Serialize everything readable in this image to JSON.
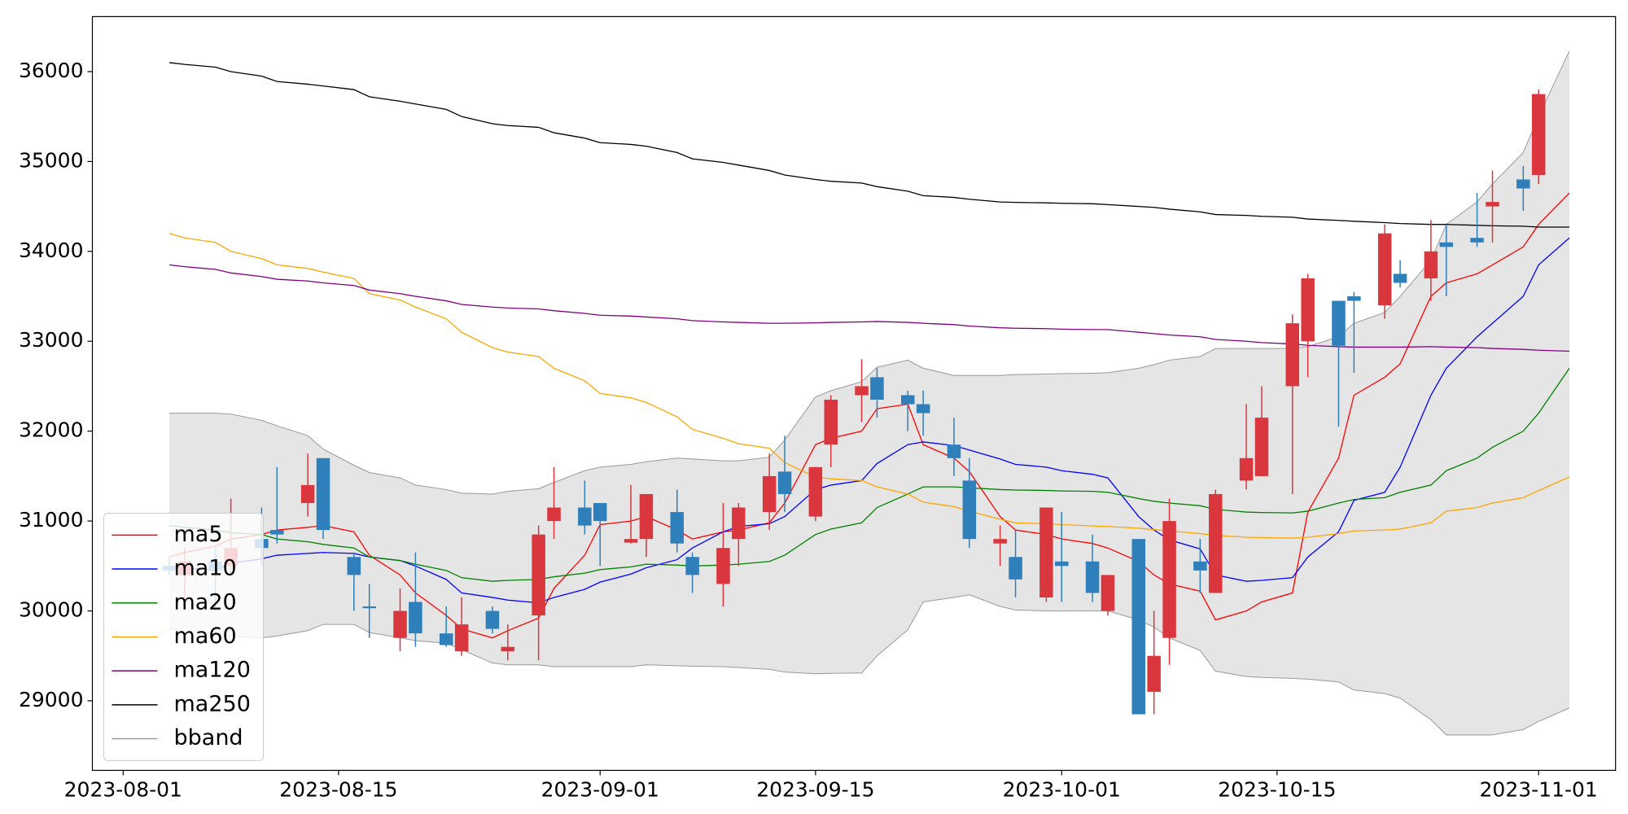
{
  "chart_data": {
    "type": "candlestick",
    "x": [
      "2023-08-04",
      "2023-08-05",
      "2023-08-07",
      "2023-08-08",
      "2023-08-10",
      "2023-08-11",
      "2023-08-13",
      "2023-08-14",
      "2023-08-16",
      "2023-08-17",
      "2023-08-19",
      "2023-08-20",
      "2023-08-22",
      "2023-08-23",
      "2023-08-25",
      "2023-08-26",
      "2023-08-28",
      "2023-08-29",
      "2023-08-31",
      "2023-09-01",
      "2023-09-03",
      "2023-09-04",
      "2023-09-06",
      "2023-09-07",
      "2023-09-09",
      "2023-09-10",
      "2023-09-12",
      "2023-09-13",
      "2023-09-15",
      "2023-09-16",
      "2023-09-18",
      "2023-09-19",
      "2023-09-21",
      "2023-09-22",
      "2023-09-24",
      "2023-09-25",
      "2023-09-27",
      "2023-09-28",
      "2023-09-30",
      "2023-10-01",
      "2023-10-03",
      "2023-10-04",
      "2023-10-06",
      "2023-10-07",
      "2023-10-08",
      "2023-10-10",
      "2023-10-11",
      "2023-10-13",
      "2023-10-14",
      "2023-10-16",
      "2023-10-17",
      "2023-10-19",
      "2023-10-20",
      "2023-10-22",
      "2023-10-23",
      "2023-10-25",
      "2023-10-26",
      "2023-10-28",
      "2023-10-29",
      "2023-10-31",
      "2023-11-01",
      "2023-11-03"
    ],
    "open": [
      30500,
      30400,
      30550,
      30500,
      30800,
      30900,
      31200,
      31700,
      30600,
      30050,
      29700,
      30100,
      29750,
      29550,
      30000,
      29550,
      29950,
      31000,
      31150,
      31200,
      30760,
      30800,
      31100,
      30600,
      30300,
      30800,
      31100,
      31550,
      31050,
      31850,
      32400,
      32600,
      32400,
      32300,
      31850,
      31450,
      30750,
      30600,
      30150,
      30550,
      30550,
      30000,
      30800,
      29100,
      29700,
      30550,
      30200,
      31450,
      31500,
      32500,
      33000,
      33450,
      33500,
      33400,
      33750,
      33700,
      34100,
      34150,
      34500,
      34800,
      34850,
      null
    ],
    "high": [
      30600,
      30700,
      30700,
      31250,
      31150,
      31600,
      31750,
      31700,
      30650,
      30300,
      30250,
      30650,
      30050,
      30150,
      30050,
      29850,
      30950,
      31600,
      31450,
      31200,
      31400,
      31300,
      31350,
      30650,
      31200,
      31200,
      31750,
      31950,
      31600,
      32400,
      32800,
      32700,
      32450,
      32450,
      32150,
      31700,
      30950,
      30900,
      31150,
      31100,
      30850,
      30400,
      30800,
      30000,
      31250,
      30800,
      31350,
      32300,
      32500,
      33300,
      33750,
      33450,
      33550,
      34300,
      33900,
      34350,
      34300,
      34650,
      34900,
      34950,
      35800,
      null
    ],
    "low": [
      30400,
      30150,
      30000,
      30400,
      30500,
      30750,
      31050,
      30800,
      30000,
      29700,
      29550,
      29600,
      29600,
      29500,
      29750,
      29450,
      29450,
      30800,
      30850,
      30500,
      30750,
      30600,
      30650,
      30200,
      30050,
      30500,
      30900,
      31100,
      31000,
      31600,
      32100,
      32150,
      32000,
      31950,
      31500,
      30700,
      30500,
      30150,
      30100,
      30100,
      30100,
      29950,
      28850,
      28850,
      29400,
      30200,
      30200,
      31350,
      31500,
      31300,
      32600,
      32050,
      32650,
      33250,
      33600,
      33450,
      33500,
      34050,
      34100,
      34450,
      34750,
      null
    ],
    "close": [
      30450,
      30550,
      30450,
      30700,
      30700,
      30850,
      31400,
      30900,
      30400,
      30030,
      30000,
      29750,
      29620,
      29850,
      29800,
      29600,
      30850,
      31150,
      30950,
      31000,
      30800,
      31300,
      30750,
      30400,
      30700,
      31150,
      31500,
      31300,
      31600,
      32350,
      32500,
      32350,
      32300,
      32200,
      31700,
      30800,
      30800,
      30350,
      31150,
      30500,
      30200,
      30400,
      28850,
      29500,
      31000,
      30450,
      31300,
      31700,
      32150,
      33200,
      33700,
      32950,
      33450,
      34200,
      33650,
      34000,
      34050,
      34100,
      34550,
      34700,
      35750,
      null
    ],
    "up_color": "#d9363e",
    "down_color": "#2f7fbb",
    "series": [
      {
        "name": "ma5",
        "color": "#ff0000",
        "values": [
          30600,
          30650,
          30720,
          30800,
          30850,
          30900,
          30930,
          30950,
          30880,
          30620,
          30400,
          30200,
          29950,
          29800,
          29700,
          29780,
          29920,
          30250,
          30620,
          30960,
          31000,
          31050,
          30900,
          30800,
          30880,
          30900,
          30980,
          31200,
          31850,
          31920,
          32000,
          32250,
          32300,
          31850,
          31700,
          31550,
          31050,
          30900,
          30850,
          30800,
          30750,
          30700,
          30550,
          30400,
          30300,
          30220,
          29900,
          30000,
          30100,
          30200,
          31100,
          31700,
          32400,
          32600,
          32750,
          33500,
          33650,
          33750,
          33850,
          34050,
          34300,
          34650
        ]
      },
      {
        "name": "ma10",
        "color": "#0000ff",
        "values": [
          30500,
          30480,
          30450,
          30530,
          30580,
          30620,
          30640,
          30650,
          30640,
          30600,
          30560,
          30500,
          30350,
          30200,
          30150,
          30120,
          30090,
          30150,
          30240,
          30320,
          30410,
          30480,
          30570,
          30700,
          30880,
          30940,
          30970,
          31050,
          31350,
          31400,
          31450,
          31640,
          31850,
          31880,
          31840,
          31790,
          31690,
          31630,
          31600,
          31560,
          31520,
          31480,
          31050,
          30900,
          30790,
          30690,
          30400,
          30330,
          30340,
          30370,
          30600,
          30880,
          31230,
          31320,
          31600,
          32400,
          32700,
          33050,
          33200,
          33500,
          33850,
          34150
        ]
      },
      {
        "name": "ma20",
        "color": "#008000",
        "values": [
          30950,
          30930,
          30900,
          30870,
          30850,
          30800,
          30770,
          30740,
          30700,
          30600,
          30560,
          30520,
          30450,
          30370,
          30330,
          30340,
          30350,
          30380,
          30420,
          30460,
          30490,
          30520,
          30510,
          30500,
          30510,
          30520,
          30550,
          30620,
          30850,
          30910,
          30980,
          31150,
          31300,
          31380,
          31380,
          31370,
          31350,
          31345,
          31340,
          31335,
          31330,
          31320,
          31250,
          31220,
          31200,
          31170,
          31130,
          31100,
          31095,
          31090,
          31110,
          31200,
          31240,
          31260,
          31320,
          31400,
          31560,
          31700,
          31820,
          32000,
          32200,
          32700
        ]
      },
      {
        "name": "ma60",
        "color": "#ffa500",
        "values": [
          34200,
          34150,
          34100,
          34000,
          33920,
          33850,
          33810,
          33770,
          33700,
          33530,
          33460,
          33380,
          33250,
          33100,
          32930,
          32880,
          32830,
          32700,
          32560,
          32420,
          32370,
          32320,
          32160,
          32020,
          31920,
          31860,
          31810,
          31650,
          31490,
          31470,
          31450,
          31380,
          31300,
          31210,
          31160,
          31110,
          31020,
          30980,
          30970,
          30960,
          30945,
          30940,
          30920,
          30905,
          30890,
          30860,
          30840,
          30820,
          30815,
          30810,
          30820,
          30860,
          30890,
          30900,
          30910,
          30980,
          31110,
          31150,
          31200,
          31260,
          31340,
          31490
        ]
      },
      {
        "name": "ma120",
        "color": "#800080",
        "values": [
          33850,
          33830,
          33800,
          33760,
          33720,
          33690,
          33670,
          33650,
          33620,
          33570,
          33530,
          33500,
          33450,
          33410,
          33380,
          33370,
          33360,
          33340,
          33310,
          33290,
          33280,
          33270,
          33250,
          33230,
          33215,
          33210,
          33200,
          33200,
          33205,
          33210,
          33215,
          33220,
          33210,
          33200,
          33185,
          33170,
          33150,
          33145,
          33140,
          33135,
          33130,
          33130,
          33100,
          33085,
          33070,
          33050,
          33020,
          33000,
          32985,
          32970,
          32955,
          32940,
          32935,
          32935,
          32935,
          32940,
          32935,
          32930,
          32920,
          32910,
          32900,
          32890
        ]
      },
      {
        "name": "ma250",
        "color": "#000000",
        "values": [
          36100,
          36080,
          36050,
          36000,
          35950,
          35890,
          35860,
          35840,
          35800,
          35720,
          35670,
          35640,
          35580,
          35500,
          35420,
          35400,
          35380,
          35320,
          35260,
          35210,
          35190,
          35170,
          35100,
          35030,
          34990,
          34960,
          34900,
          34850,
          34800,
          34780,
          34760,
          34720,
          34670,
          34620,
          34600,
          34580,
          34550,
          34545,
          34540,
          34535,
          34530,
          34520,
          34500,
          34490,
          34470,
          34440,
          34410,
          34400,
          34390,
          34380,
          34360,
          34345,
          34335,
          34320,
          34310,
          34300,
          34300,
          34290,
          34285,
          34280,
          34270,
          34270
        ]
      }
    ],
    "band": {
      "name": "bband",
      "color": "#999999",
      "fill": "#e5e5e5",
      "upper": [
        32200,
        32200,
        32200,
        32190,
        32120,
        32060,
        31950,
        31800,
        31620,
        31540,
        31480,
        31400,
        31350,
        31310,
        31300,
        31330,
        31360,
        31430,
        31560,
        31600,
        31630,
        31660,
        31700,
        31690,
        31670,
        31670,
        31710,
        31900,
        32380,
        32450,
        32550,
        32710,
        32790,
        32700,
        32620,
        32620,
        32620,
        32630,
        32635,
        32640,
        32645,
        32650,
        32700,
        32740,
        32790,
        32830,
        32920,
        32920,
        32920,
        32920,
        32940,
        33050,
        33200,
        33320,
        33500,
        33900,
        34300,
        34550,
        34750,
        35100,
        35500,
        36230
      ],
      "lower": [
        29800,
        29780,
        29750,
        29720,
        29700,
        29720,
        29780,
        29850,
        29850,
        29760,
        29700,
        29670,
        29640,
        29570,
        29420,
        29400,
        29400,
        29380,
        29380,
        29380,
        29380,
        29400,
        29390,
        29385,
        29380,
        29370,
        29350,
        29320,
        29300,
        29305,
        29310,
        29500,
        29790,
        30100,
        30150,
        30180,
        30050,
        30010,
        30000,
        30000,
        30000,
        30000,
        29900,
        29820,
        29700,
        29560,
        29330,
        29270,
        29260,
        29250,
        29240,
        29210,
        29120,
        29080,
        29030,
        28790,
        28620,
        28620,
        28620,
        28680,
        28770,
        28920
      ]
    },
    "xlim": [
      "2023-07-30",
      "2023-11-06"
    ],
    "xticks": [
      "2023-08-01",
      "2023-08-15",
      "2023-09-01",
      "2023-09-15",
      "2023-10-01",
      "2023-10-15",
      "2023-11-01"
    ],
    "ylim": [
      28226,
      36612
    ],
    "yticks": [
      29000,
      30000,
      31000,
      32000,
      33000,
      34000,
      35000,
      36000
    ],
    "legend": "lower left"
  }
}
